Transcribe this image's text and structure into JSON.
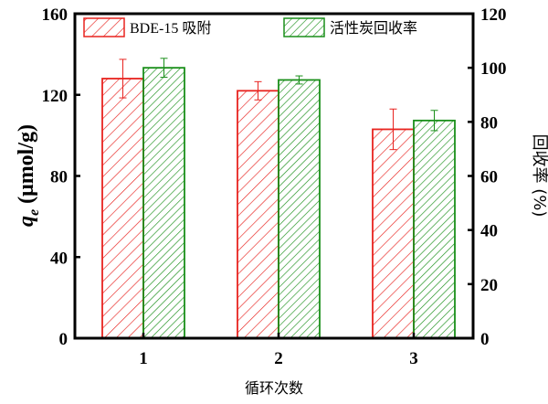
{
  "chart_data": {
    "type": "bar",
    "categories": [
      "1",
      "2",
      "3"
    ],
    "xlabel": "循环次数",
    "ylabel_left": "q_e (μmol/g)",
    "ylabel_left_main": "q",
    "ylabel_left_sub": "e",
    "ylabel_left_unit": " (μmol/g)",
    "ylabel_right": "回收率 (%)",
    "ylim_left": [
      0,
      160
    ],
    "ylim_right": [
      0,
      120
    ],
    "yticks_left": [
      "0",
      "40",
      "80",
      "120",
      "160"
    ],
    "yticks_right": [
      "0",
      "20",
      "40",
      "60",
      "80",
      "100",
      "120"
    ],
    "grid": false,
    "legend_position": "top",
    "series": [
      {
        "name": "BDE-15 吸附",
        "axis": "left",
        "color": "#e8231f",
        "values": [
          128,
          122,
          103
        ],
        "errors": [
          9.5,
          4.5,
          10
        ]
      },
      {
        "name": "活性炭回收率",
        "axis": "right",
        "color": "#1a8f1a",
        "values": [
          100,
          95.5,
          80.5
        ],
        "errors": [
          3.5,
          1.5,
          3.75
        ]
      }
    ]
  }
}
